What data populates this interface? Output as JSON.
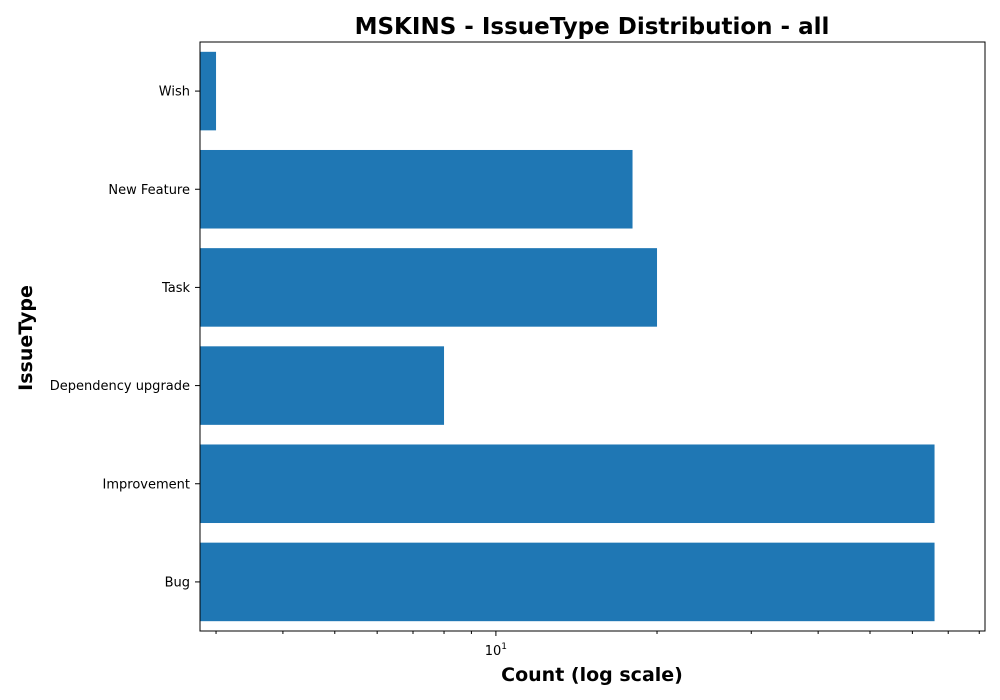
{
  "chart_data": {
    "type": "bar",
    "orientation": "horizontal",
    "title": "MSKINS - IssueType Distribution - all",
    "xlabel": "Count (log scale)",
    "ylabel": "IssueType",
    "x_scale": "log",
    "xlim": [
      2.8,
      82
    ],
    "x_major_ticks": [
      {
        "value": 10,
        "base": "10",
        "exp": "1"
      }
    ],
    "x_minor_ticks": [
      3,
      4,
      5,
      6,
      7,
      8,
      9,
      20,
      30,
      40,
      50,
      60,
      70,
      80
    ],
    "categories": [
      "Bug",
      "Improvement",
      "Dependency upgrade",
      "Task",
      "New Feature",
      "Wish"
    ],
    "values": [
      66,
      66,
      8,
      20,
      18,
      3
    ],
    "color": "#1f77b4",
    "grid": false,
    "legend": "none"
  }
}
